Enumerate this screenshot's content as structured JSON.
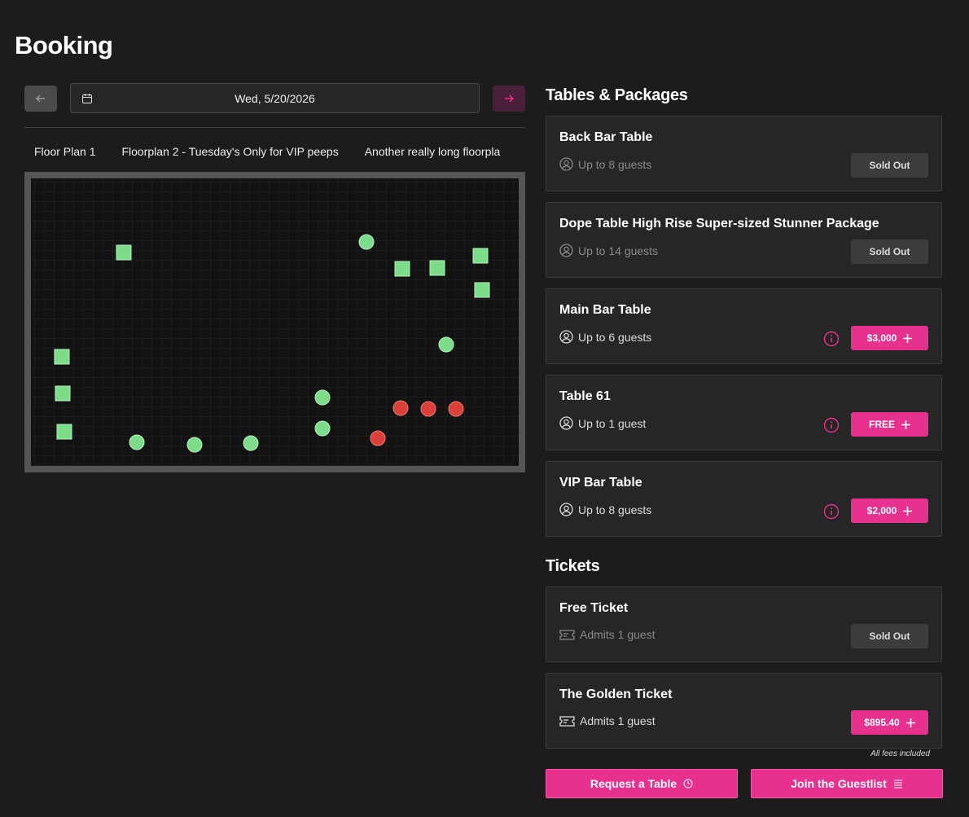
{
  "header": {
    "title": "Booking"
  },
  "date_picker": {
    "date": "Wed, 5/20/2026"
  },
  "floor_plan_tabs": [
    "Floor Plan 1",
    "Floorplan 2 - Tuesday's Only for VIP peeps",
    "Another really long floorpla"
  ],
  "tables_section": {
    "title": "Tables & Packages",
    "items": [
      {
        "name": "Back Bar Table",
        "capacity": "Up to 8 guests",
        "action": "Sold Out"
      },
      {
        "name": "Dope Table High Rise Super-sized Stunner Package",
        "capacity": "Up to 14 guests",
        "action": "Sold Out"
      },
      {
        "name": "Main Bar Table",
        "capacity": "Up to 6 guests",
        "action": "$3,000"
      },
      {
        "name": "Table 61",
        "capacity": "Up to 1 guest",
        "action": "FREE"
      },
      {
        "name": "VIP Bar Table",
        "capacity": "Up to 8 guests",
        "action": "$2,000"
      }
    ]
  },
  "tickets_section": {
    "title": "Tickets",
    "items": [
      {
        "name": "Free Ticket",
        "capacity": "Admits 1 guest",
        "action": "Sold Out"
      },
      {
        "name": "The Golden Ticket",
        "capacity": "Admits 1 guest",
        "action": "$895.40",
        "note": "All fees included"
      }
    ]
  },
  "footer_buttons": [
    "Request a Table",
    "Join the Guestlist"
  ]
}
